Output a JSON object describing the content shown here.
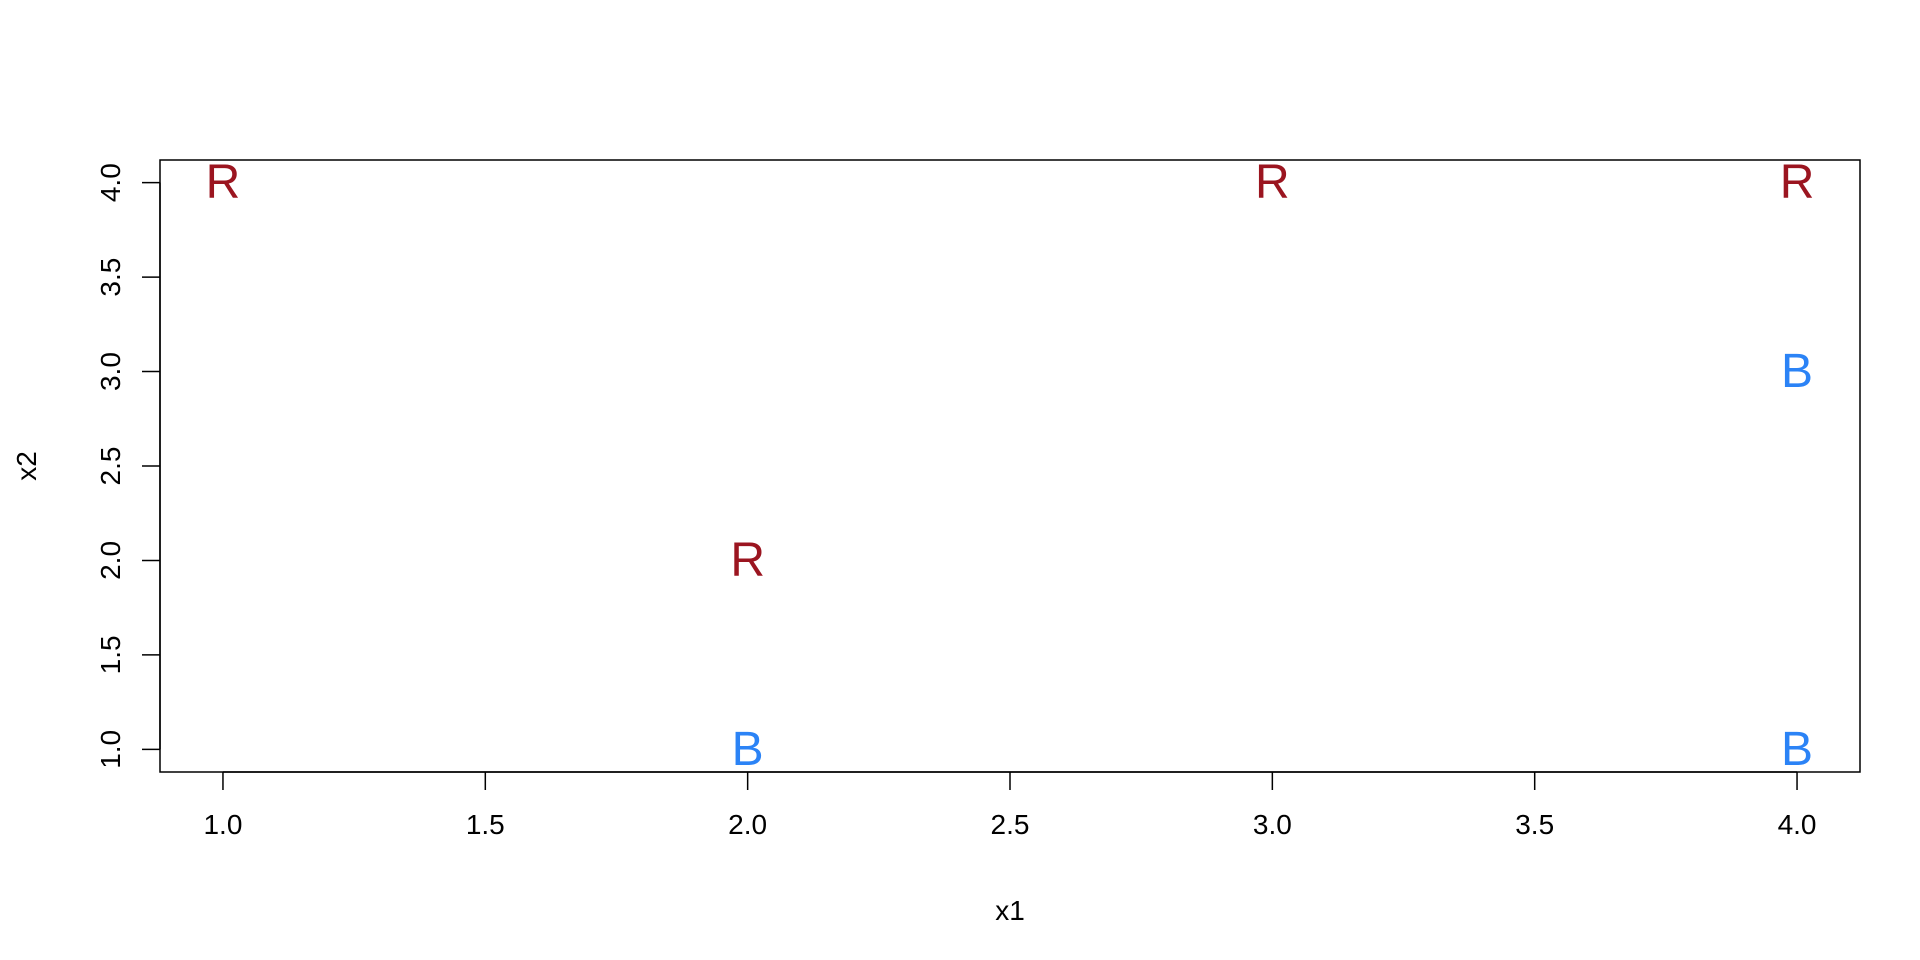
{
  "chart_data": {
    "type": "scatter",
    "title": "",
    "xlabel": "x1",
    "ylabel": "x2",
    "xlim": [
      0.88,
      4.12
    ],
    "ylim": [
      0.88,
      4.12
    ],
    "xticks": [
      1.0,
      1.5,
      2.0,
      2.5,
      3.0,
      3.5,
      4.0
    ],
    "yticks": [
      1.0,
      1.5,
      2.0,
      2.5,
      3.0,
      3.5,
      4.0
    ],
    "xtick_labels": [
      "1.0",
      "1.5",
      "2.0",
      "2.5",
      "3.0",
      "3.5",
      "4.0"
    ],
    "ytick_labels": [
      "1.0",
      "1.5",
      "2.0",
      "2.5",
      "3.0",
      "3.5",
      "4.0"
    ],
    "grid": false,
    "legend": "none",
    "points": [
      {
        "x": 1,
        "y": 4,
        "label": "R"
      },
      {
        "x": 2,
        "y": 2,
        "label": "R"
      },
      {
        "x": 2,
        "y": 1,
        "label": "B"
      },
      {
        "x": 3,
        "y": 4,
        "label": "R"
      },
      {
        "x": 4,
        "y": 4,
        "label": "R"
      },
      {
        "x": 4,
        "y": 3,
        "label": "B"
      },
      {
        "x": 4,
        "y": 1,
        "label": "B"
      }
    ],
    "colors": {
      "R": "#9B1520",
      "B": "#2B83F6"
    }
  }
}
